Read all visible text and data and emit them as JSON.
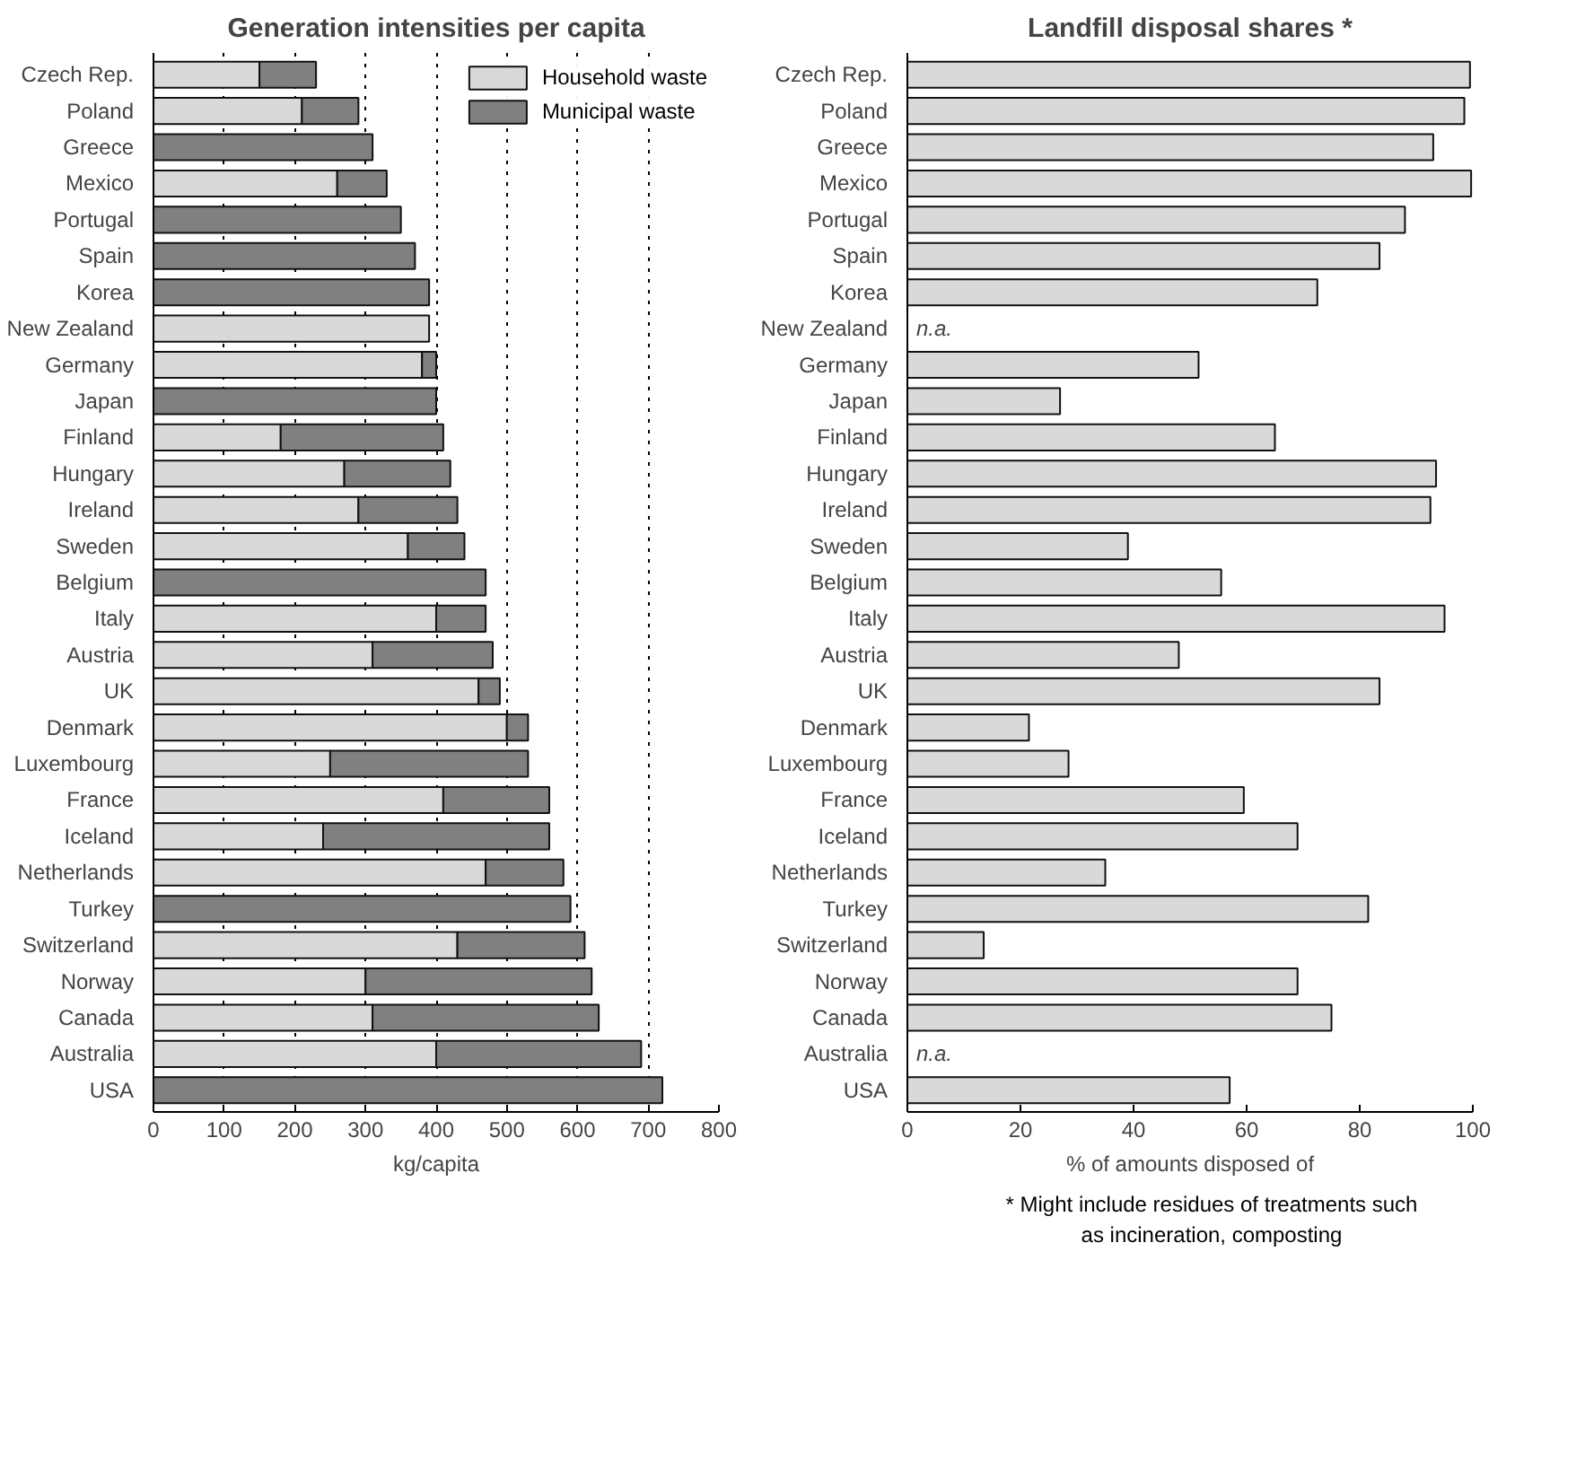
{
  "chart_data": [
    {
      "type": "bar",
      "orientation": "horizontal",
      "stacked": true,
      "title": "Generation intensities per capita",
      "xlabel": "kg/capita",
      "categories": [
        "Czech Rep.",
        "Poland",
        "Greece",
        "Mexico",
        "Portugal",
        "Spain",
        "Korea",
        "New Zealand",
        "Germany",
        "Japan",
        "Finland",
        "Hungary",
        "Ireland",
        "Sweden",
        "Belgium",
        "Italy",
        "Austria",
        "UK",
        "Denmark",
        "Luxembourg",
        "France",
        "Iceland",
        "Netherlands",
        "Turkey",
        "Switzerland",
        "Norway",
        "Canada",
        "Australia",
        "USA"
      ],
      "series": [
        {
          "name": "Household waste",
          "color": "#d9d9d9",
          "values": [
            150,
            210,
            null,
            260,
            null,
            null,
            null,
            390,
            380,
            null,
            180,
            270,
            290,
            360,
            null,
            400,
            310,
            460,
            500,
            250,
            410,
            240,
            470,
            null,
            430,
            300,
            310,
            400,
            null
          ]
        },
        {
          "name": "Municipal waste",
          "color": "#808080",
          "values": [
            80,
            80,
            310,
            70,
            350,
            370,
            390,
            null,
            20,
            400,
            230,
            150,
            140,
            80,
            470,
            70,
            170,
            30,
            30,
            280,
            150,
            320,
            110,
            590,
            180,
            320,
            320,
            290,
            720
          ]
        }
      ],
      "xlim": [
        0,
        800
      ],
      "xticks": [
        0,
        100,
        200,
        300,
        400,
        500,
        600,
        700,
        800
      ],
      "grid": "x",
      "legend": "top right"
    },
    {
      "type": "bar",
      "orientation": "horizontal",
      "title": "Landfill disposal shares *",
      "xlabel": "% of amounts disposed of",
      "categories": [
        "Czech Rep.",
        "Poland",
        "Greece",
        "Mexico",
        "Portugal",
        "Spain",
        "Korea",
        "New Zealand",
        "Germany",
        "Japan",
        "Finland",
        "Hungary",
        "Ireland",
        "Sweden",
        "Belgium",
        "Italy",
        "Austria",
        "UK",
        "Denmark",
        "Luxembourg",
        "France",
        "Iceland",
        "Netherlands",
        "Turkey",
        "Switzerland",
        "Norway",
        "Canada",
        "Australia",
        "USA"
      ],
      "color": "#d9d9d9",
      "values": [
        99.5,
        98.5,
        93,
        99.7,
        88,
        83.5,
        72.5,
        null,
        51.5,
        27,
        65,
        93.5,
        92.5,
        39,
        55.5,
        95,
        48,
        83.5,
        21.5,
        28.5,
        59.5,
        69,
        35,
        81.5,
        13.5,
        69,
        75,
        null,
        57
      ],
      "value_labels": [
        null,
        null,
        null,
        null,
        null,
        null,
        null,
        "n.a.",
        null,
        null,
        null,
        null,
        null,
        null,
        null,
        null,
        null,
        null,
        null,
        null,
        null,
        null,
        null,
        null,
        null,
        null,
        null,
        "n.a.",
        null
      ],
      "xlim": [
        0,
        100
      ],
      "xticks": [
        0,
        20,
        40,
        60,
        80,
        100
      ],
      "annotations": [
        "* Might include residues of treatments such as incineration, composting"
      ]
    }
  ]
}
